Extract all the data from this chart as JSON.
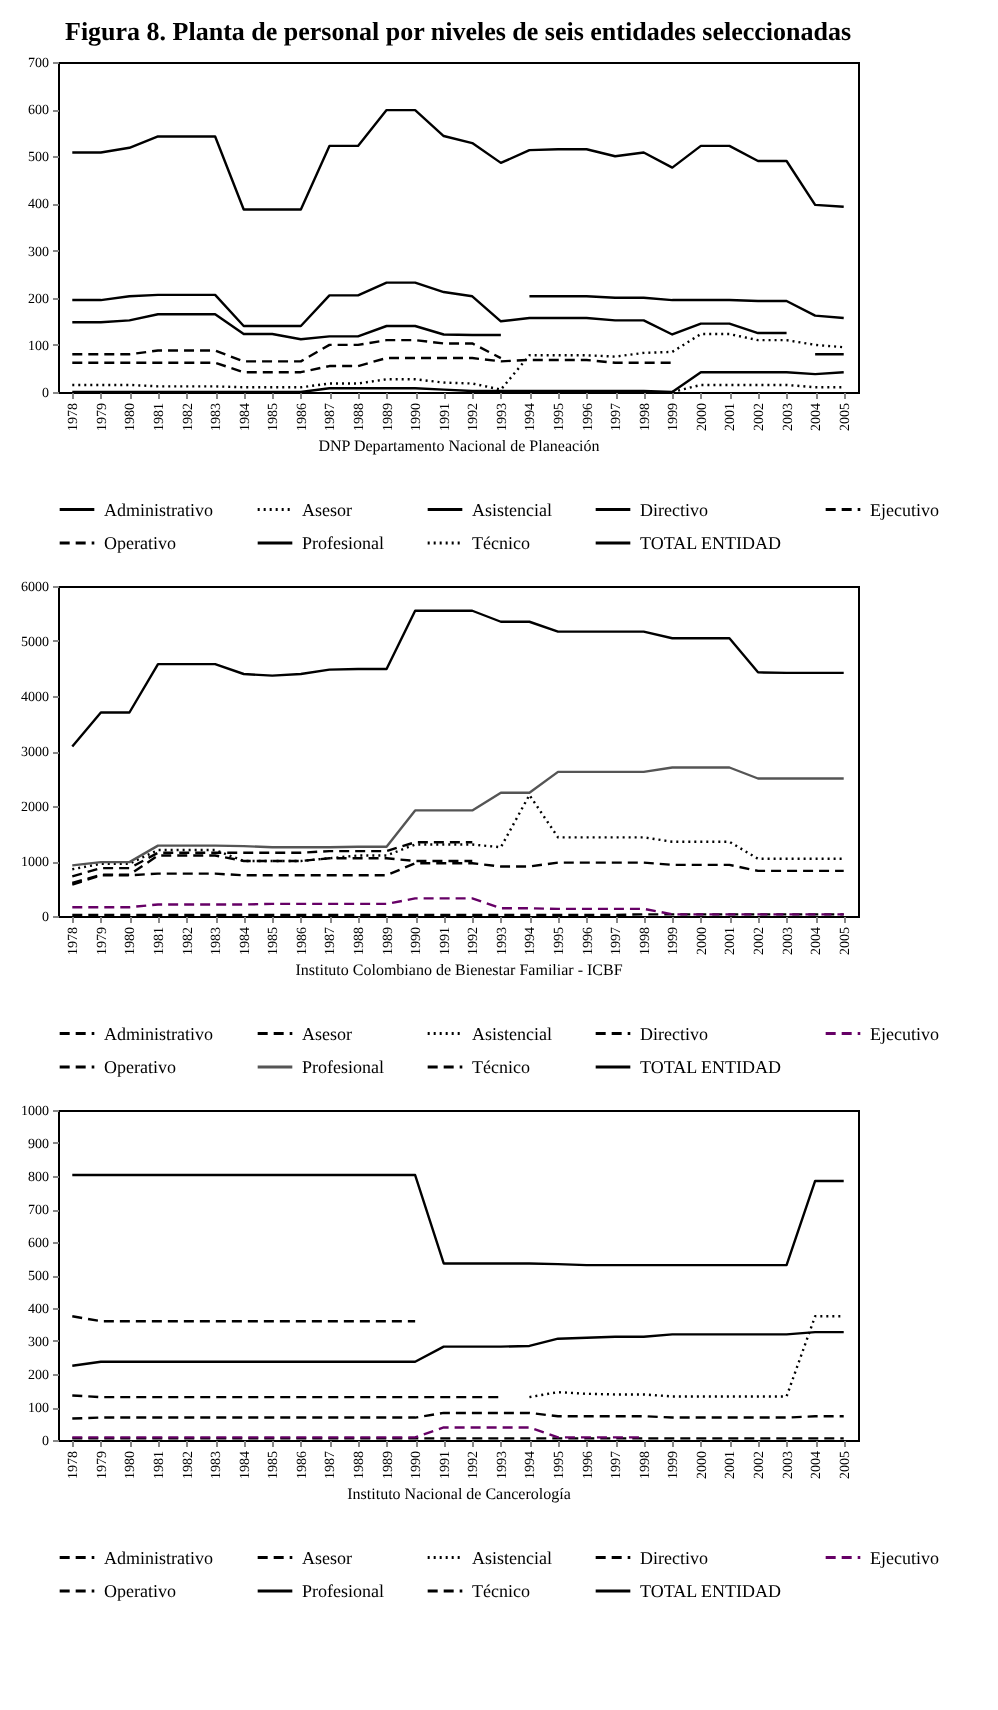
{
  "chart_data": [
    {
      "type": "line",
      "title": "Figura 8. Planta de personal por niveles de seis entidades seleccionadas",
      "xlabel": "DNP Departamento Nacional de Planeación",
      "categories": [
        "1978",
        "1979",
        "1980",
        "1981",
        "1982",
        "1983",
        "1984",
        "1985",
        "1986",
        "1987",
        "1988",
        "1989",
        "1990",
        "1991",
        "1992",
        "1993",
        "1994",
        "1995",
        "1996",
        "1997",
        "1998",
        "1999",
        "2000",
        "2001",
        "2002",
        "2003",
        "2004",
        "2005"
      ],
      "ylim": [
        0,
        700
      ],
      "yticks": [
        0,
        100,
        200,
        300,
        400,
        500,
        600,
        700
      ],
      "legend": "bottom",
      "series": [
        {
          "name": "Administrativo",
          "color": "#000000",
          "line_style": "solid",
          "values": [
            148,
            148,
            152,
            165,
            165,
            165,
            123,
            123,
            112,
            118,
            118,
            140,
            140,
            122,
            121,
            121,
            null,
            null,
            null,
            null,
            null,
            null,
            null,
            null,
            null,
            null,
            80,
            80
          ]
        },
        {
          "name": "Asesor",
          "color": "#000000",
          "line_style": "dotted",
          "values": [
            15,
            15,
            15,
            12,
            12,
            12,
            10,
            10,
            10,
            18,
            18,
            27,
            27,
            20,
            18,
            5,
            78,
            78,
            78,
            75,
            83,
            85,
            123,
            123,
            110,
            110,
            100,
            95
          ]
        },
        {
          "name": "Asistencial",
          "color": "#000000",
          "line_style": "solid",
          "values": [
            195,
            195,
            203,
            206,
            206,
            206,
            140,
            140,
            140,
            205,
            205,
            232,
            232,
            212,
            203,
            150,
            157,
            157,
            157,
            152,
            152,
            122,
            145,
            145,
            125,
            125,
            null,
            null
          ]
        },
        {
          "name": "Directivo",
          "color": "#000000",
          "line_style": "solid",
          "values": [
            0,
            0,
            0,
            0,
            0,
            0,
            0,
            0,
            0,
            8,
            8,
            8,
            8,
            5,
            2,
            2,
            2,
            2,
            2,
            2,
            2,
            0,
            42,
            42,
            42,
            42,
            38,
            42
          ]
        },
        {
          "name": "Ejecutivo",
          "color": "#000000",
          "line_style": "dashed",
          "values": [
            62,
            62,
            62,
            62,
            62,
            62,
            42,
            42,
            42,
            55,
            55,
            72,
            72,
            72,
            72,
            65,
            68,
            68,
            68,
            62,
            62,
            62,
            null,
            null,
            null,
            null,
            null,
            null
          ]
        },
        {
          "name": "Operativo",
          "color": "#000000",
          "line_style": "dashed",
          "values": [
            80,
            80,
            80,
            88,
            88,
            88,
            65,
            65,
            65,
            100,
            100,
            110,
            110,
            103,
            103,
            72,
            null,
            null,
            null,
            null,
            null,
            null,
            null,
            null,
            null,
            null,
            null,
            null
          ]
        },
        {
          "name": "Profesional",
          "color": "#000000",
          "line_style": "solid",
          "values": [
            null,
            null,
            null,
            null,
            null,
            null,
            null,
            null,
            null,
            null,
            null,
            null,
            null,
            null,
            null,
            null,
            203,
            203,
            203,
            200,
            200,
            195,
            195,
            195,
            193,
            193,
            162,
            157
          ]
        },
        {
          "name": "Técnico",
          "color": "#000000",
          "line_style": "dotted",
          "values": [
            null,
            null,
            null,
            null,
            null,
            null,
            null,
            null,
            null,
            null,
            null,
            null,
            null,
            null,
            null,
            null,
            null,
            null,
            null,
            null,
            null,
            0,
            15,
            15,
            15,
            15,
            10,
            10
          ]
        },
        {
          "name": "TOTAL ENTIDAD",
          "color": "#000000",
          "line_style": "solid",
          "values": [
            508,
            508,
            518,
            542,
            542,
            542,
            387,
            387,
            387,
            522,
            522,
            598,
            598,
            543,
            528,
            486,
            513,
            515,
            515,
            500,
            508,
            476,
            522,
            522,
            490,
            490,
            397,
            393
          ]
        }
      ]
    },
    {
      "type": "line",
      "xlabel": "Instituto Colombiano de Bienestar Familiar - ICBF",
      "categories": [
        "1978",
        "1979",
        "1980",
        "1981",
        "1982",
        "1983",
        "1984",
        "1985",
        "1986",
        "1987",
        "1988",
        "1989",
        "1990",
        "1991",
        "1992",
        "1993",
        "1994",
        "1995",
        "1996",
        "1997",
        "1998",
        "1999",
        "2000",
        "2001",
        "2002",
        "2003",
        "2004",
        "2005"
      ],
      "ylim": [
        0,
        6000
      ],
      "yticks": [
        0,
        1000,
        2000,
        3000,
        4000,
        5000,
        6000
      ],
      "legend": "bottom",
      "series": [
        {
          "name": "Administrativo",
          "color": "#000000",
          "line_style": "dashed",
          "values": [
            600,
            750,
            750,
            1100,
            1100,
            1100,
            1000,
            1000,
            1000,
            1050,
            1050,
            1050,
            1000,
            1000,
            1000,
            null,
            null,
            null,
            null,
            null,
            null,
            null,
            null,
            null,
            null,
            null,
            null,
            null
          ]
        },
        {
          "name": "Asesor",
          "color": "#000000",
          "line_style": "dashed",
          "values": [
            null,
            null,
            null,
            null,
            null,
            null,
            null,
            null,
            null,
            null,
            null,
            null,
            null,
            null,
            null,
            null,
            null,
            null,
            null,
            null,
            null,
            null,
            null,
            null,
            null,
            null,
            null,
            null
          ]
        },
        {
          "name": "Asistencial",
          "color": "#000000",
          "line_style": "dotted",
          "values": [
            850,
            950,
            950,
            1200,
            1200,
            1200,
            1000,
            1000,
            1000,
            1050,
            1100,
            1100,
            1300,
            1300,
            1300,
            1250,
            2200,
            1430,
            1430,
            1430,
            1430,
            1350,
            1350,
            1350,
            1040,
            1040,
            1040,
            1040
          ]
        },
        {
          "name": "Directivo",
          "color": "#000000",
          "line_style": "dashed",
          "values": [
            20,
            20,
            20,
            20,
            20,
            20,
            20,
            20,
            20,
            20,
            20,
            20,
            20,
            20,
            20,
            20,
            20,
            20,
            20,
            20,
            30,
            30,
            30,
            30,
            30,
            30,
            30,
            30
          ]
        },
        {
          "name": "Ejecutivo",
          "color": "#660066",
          "line_style": "dashed",
          "values": [
            160,
            160,
            160,
            210,
            210,
            210,
            210,
            220,
            220,
            220,
            220,
            220,
            320,
            320,
            320,
            140,
            140,
            130,
            130,
            130,
            130,
            30,
            30,
            30,
            30,
            30,
            30,
            30
          ]
        },
        {
          "name": "Operativo",
          "color": "#000000",
          "line_style": "dashed",
          "values": [
            720,
            870,
            870,
            1150,
            1150,
            1150,
            1150,
            1150,
            1150,
            1180,
            1180,
            1180,
            1340,
            1340,
            1340,
            null,
            null,
            null,
            null,
            null,
            null,
            null,
            null,
            null,
            null,
            null,
            null,
            null
          ]
        },
        {
          "name": "Profesional",
          "color": "#555555",
          "line_style": "solid",
          "values": [
            920,
            980,
            980,
            1280,
            1280,
            1280,
            1270,
            1250,
            1250,
            1250,
            1260,
            1260,
            1920,
            1920,
            1920,
            2240,
            2240,
            2620,
            2620,
            2620,
            2620,
            2700,
            2700,
            2700,
            2500,
            2500,
            2500,
            2500
          ]
        },
        {
          "name": "Técnico",
          "color": "#000000",
          "line_style": "dashed",
          "values": [
            570,
            740,
            740,
            770,
            770,
            770,
            740,
            740,
            740,
            740,
            740,
            740,
            960,
            960,
            960,
            900,
            900,
            970,
            970,
            970,
            970,
            930,
            930,
            930,
            820,
            820,
            820,
            820
          ]
        },
        {
          "name": "TOTAL ENTIDAD",
          "color": "#000000",
          "line_style": "solid",
          "values": [
            3080,
            3700,
            3700,
            4580,
            4580,
            4580,
            4400,
            4370,
            4400,
            4480,
            4490,
            4490,
            5550,
            5550,
            5550,
            5350,
            5350,
            5170,
            5170,
            5170,
            5170,
            5050,
            5050,
            5050,
            4430,
            4420,
            4420,
            4420
          ]
        }
      ]
    },
    {
      "type": "line",
      "xlabel": "Instituto Nacional de Cancerología",
      "categories": [
        "1978",
        "1979",
        "1980",
        "1981",
        "1982",
        "1983",
        "1984",
        "1985",
        "1986",
        "1987",
        "1988",
        "1989",
        "1990",
        "1991",
        "1992",
        "1993",
        "1994",
        "1995",
        "1996",
        "1997",
        "1998",
        "1999",
        "2000",
        "2001",
        "2002",
        "2003",
        "2004",
        "2005"
      ],
      "ylim": [
        0,
        1000
      ],
      "yticks": [
        0,
        100,
        200,
        300,
        400,
        500,
        600,
        700,
        800,
        900,
        1000
      ],
      "legend": "bottom",
      "series": [
        {
          "name": "Administrativo",
          "color": "#000000",
          "line_style": "dashed",
          "values": [
            135,
            130,
            130,
            130,
            130,
            130,
            130,
            130,
            130,
            130,
            130,
            130,
            130,
            130,
            130,
            130,
            null,
            null,
            null,
            null,
            null,
            null,
            null,
            null,
            null,
            null,
            null,
            null
          ]
        },
        {
          "name": "Asesor",
          "color": "#000000",
          "line_style": "dashed",
          "values": [
            null,
            null,
            null,
            null,
            null,
            null,
            null,
            null,
            null,
            null,
            null,
            null,
            null,
            null,
            null,
            null,
            null,
            null,
            null,
            null,
            null,
            null,
            null,
            null,
            null,
            null,
            null,
            null
          ]
        },
        {
          "name": "Asistencial",
          "color": "#000000",
          "line_style": "dotted",
          "values": [
            null,
            null,
            null,
            null,
            null,
            null,
            null,
            null,
            null,
            null,
            null,
            null,
            null,
            null,
            null,
            null,
            130,
            145,
            140,
            138,
            138,
            132,
            132,
            132,
            132,
            132,
            375,
            375
          ]
        },
        {
          "name": "Directivo",
          "color": "#000000",
          "line_style": "dashed",
          "values": [
            5,
            5,
            5,
            5,
            5,
            5,
            5,
            5,
            5,
            5,
            5,
            5,
            5,
            5,
            5,
            5,
            5,
            5,
            5,
            5,
            5,
            5,
            5,
            5,
            5,
            5,
            5,
            5
          ]
        },
        {
          "name": "Ejecutivo",
          "color": "#660066",
          "line_style": "dashed",
          "values": [
            8,
            8,
            8,
            8,
            8,
            8,
            8,
            8,
            8,
            8,
            8,
            8,
            8,
            38,
            38,
            38,
            38,
            8,
            8,
            8,
            8,
            null,
            null,
            null,
            null,
            null,
            null,
            null
          ]
        },
        {
          "name": "Operativo",
          "color": "#000000",
          "line_style": "dashed",
          "values": [
            375,
            360,
            360,
            360,
            360,
            360,
            360,
            360,
            360,
            360,
            360,
            360,
            360,
            null,
            null,
            null,
            null,
            null,
            null,
            null,
            null,
            null,
            null,
            null,
            null,
            null,
            null,
            null
          ]
        },
        {
          "name": "Profesional",
          "color": "#000000",
          "line_style": "solid",
          "values": [
            225,
            237,
            237,
            237,
            237,
            237,
            237,
            237,
            237,
            237,
            237,
            237,
            237,
            283,
            283,
            283,
            285,
            307,
            310,
            313,
            313,
            320,
            320,
            320,
            320,
            320,
            327,
            327
          ]
        },
        {
          "name": "Técnico",
          "color": "#000000",
          "line_style": "dashed",
          "values": [
            65,
            68,
            68,
            68,
            68,
            68,
            68,
            68,
            68,
            68,
            68,
            68,
            68,
            82,
            82,
            82,
            82,
            72,
            72,
            72,
            72,
            68,
            68,
            68,
            68,
            68,
            72,
            72
          ]
        },
        {
          "name": "TOTAL ENTIDAD",
          "color": "#000000",
          "line_style": "solid",
          "values": [
            803,
            803,
            803,
            803,
            803,
            803,
            803,
            803,
            803,
            803,
            803,
            803,
            803,
            535,
            535,
            535,
            535,
            533,
            530,
            530,
            530,
            530,
            530,
            530,
            530,
            530,
            785,
            785
          ]
        }
      ]
    }
  ]
}
